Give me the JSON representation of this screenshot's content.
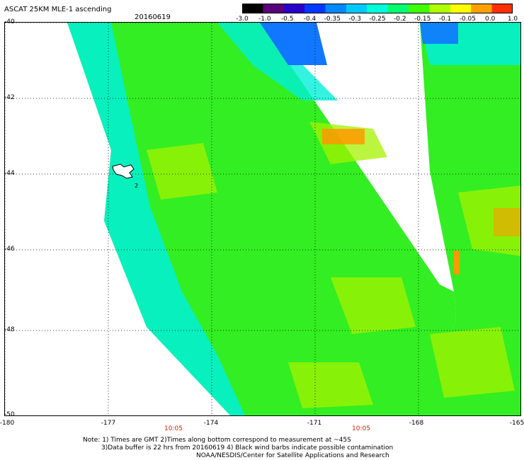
{
  "header": {
    "title": "ASCAT 25KM MLE-1 ascending",
    "date": "20160619"
  },
  "colorbar": {
    "labels": [
      "-3.0",
      "-1.0",
      "-0.5",
      "-0.4",
      "-0.35",
      "-0.3",
      "-0.25",
      "-0.2",
      "-0.15",
      "-0.1",
      "-0.05",
      "0.0",
      "1.0"
    ],
    "colors": [
      "#000000",
      "#5a0078",
      "#2a00c8",
      "#0038ff",
      "#0088ff",
      "#00c8ff",
      "#00ffd8",
      "#00ff70",
      "#40ff00",
      "#b0ff00",
      "#ffff00",
      "#ffa000",
      "#ff3000"
    ]
  },
  "axes": {
    "lat_labels": [
      "-40",
      "-42",
      "-44",
      "-46",
      "-48",
      "-50"
    ],
    "lon_labels": [
      "-180",
      "-177",
      "-174",
      "-171",
      "-168",
      "-165"
    ]
  },
  "map": {
    "island_label": "2",
    "swath_colors": {
      "green": "#33ee22",
      "cyan": "#00f0d8",
      "yellow_green": "#a6f200",
      "blue": "#1177ff",
      "orange": "#ff9900"
    }
  },
  "time_labels": [
    "10:05",
    "10:05"
  ],
  "notes": [
    "Note: 1) Times are GMT 2)Times along bottom correspond to measurement at ~45S",
    "3)Data buffer is 22 hrs from 20160619 4) Black wind barbs indicate possible contamination",
    "NOAA/NESDIS/Center for Satellite Applications and Research"
  ]
}
